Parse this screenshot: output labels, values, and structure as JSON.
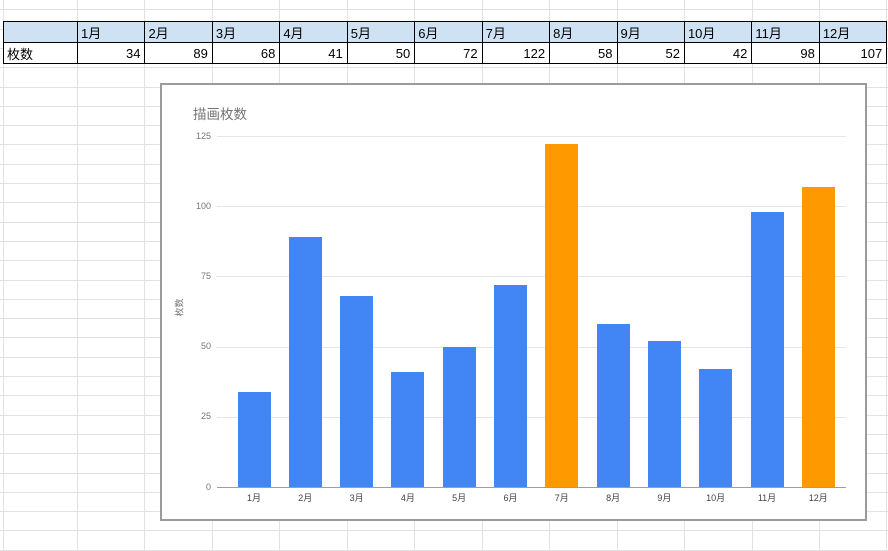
{
  "table": {
    "corner_label": "",
    "row_label": "枚数",
    "months": [
      "1月",
      "2月",
      "3月",
      "4月",
      "5月",
      "6月",
      "7月",
      "8月",
      "9月",
      "10月",
      "11月",
      "12月"
    ],
    "values": [
      "34",
      "89",
      "68",
      "41",
      "50",
      "72",
      "122",
      "58",
      "52",
      "42",
      "98",
      "107"
    ]
  },
  "chart_data": {
    "type": "bar",
    "title": "描画枚数",
    "xlabel": "",
    "ylabel": "枚数",
    "categories": [
      "1月",
      "2月",
      "3月",
      "4月",
      "5月",
      "6月",
      "7月",
      "8月",
      "9月",
      "10月",
      "11月",
      "12月"
    ],
    "values": [
      34,
      89,
      68,
      41,
      50,
      72,
      122,
      58,
      52,
      42,
      98,
      107
    ],
    "bar_colors": [
      "#4285F4",
      "#4285F4",
      "#4285F4",
      "#4285F4",
      "#4285F4",
      "#4285F4",
      "#FF9900",
      "#4285F4",
      "#4285F4",
      "#4285F4",
      "#4285F4",
      "#FF9900"
    ],
    "ylim": [
      0,
      125
    ],
    "yticks": [
      0,
      25,
      50,
      75,
      100,
      125
    ],
    "grid": true,
    "legend": "none"
  },
  "colors": {
    "bar_blue": "#4285F4",
    "bar_orange": "#FF9900",
    "header_bg": "#cfe2f3",
    "sheet_gridline": "#e2e2e2",
    "chart_gridline": "#e6e6e6",
    "axis_line": "#9e9e9e",
    "chart_border": "#9b9b9b"
  }
}
